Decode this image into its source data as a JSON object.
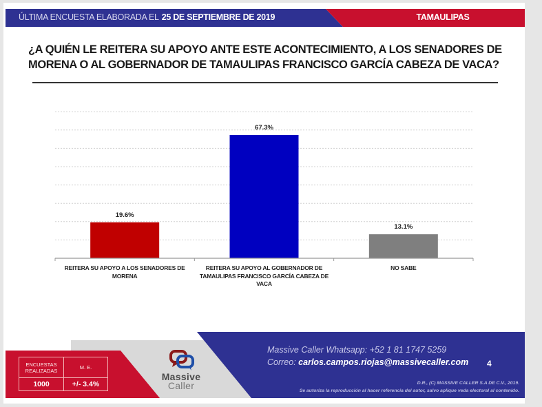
{
  "header": {
    "survey_label": "ÚLTIMA ENCUESTA ELABORADA EL",
    "survey_date": "25 DE SEPTIEMBRE DE 2019",
    "state": "TAMAULIPAS",
    "colors": {
      "blue": "#2e3192",
      "red": "#c8102e"
    }
  },
  "question": "¿A QUIÉN LE REITERA SU APOYO ANTE ESTE ACONTECIMIENTO, A LOS SENADORES DE MORENA O AL GOBERNADOR DE TAMAULIPAS FRANCISCO GARCÍA CABEZA DE VACA?",
  "chart_data": {
    "type": "bar",
    "title": "¿A QUIÉN LE REITERA SU APOYO ANTE ESTE ACONTECIMIENTO, A LOS SENADORES DE MORENA O AL GOBERNADOR DE TAMAULIPAS FRANCISCO GARCÍA CABEZA DE VACA?",
    "categories": [
      "REITERA SU APOYO A LOS SENADORES DE MORENA",
      "REITERA SU APOYO AL GOBERNADOR DE TAMAULIPAS FRANCISCO GARCÍA CABEZA DE VACA",
      "NO SABE"
    ],
    "values": [
      19.6,
      67.3,
      13.1
    ],
    "data_labels": [
      "19.6%",
      "67.3%",
      "13.1%"
    ],
    "colors": [
      "#c00000",
      "#0000c0",
      "#7f7f7f"
    ],
    "xlabel": "",
    "ylabel": "",
    "ylim": [
      0,
      80
    ],
    "grid": true,
    "grid_step": 10,
    "legend": "none"
  },
  "footer": {
    "table": {
      "col1_header": "ENCUESTAS REALIZADAS",
      "col2_header": "M. E.",
      "col1_value": "1000",
      "col2_value": "+/- 3.4%"
    },
    "logo": {
      "line1": "Massive",
      "line2": "Caller"
    },
    "whatsapp": "Massive Caller Whatsapp: +52 1 81 1747 5259",
    "email_label": "Correo:",
    "email": "carlos.campos.riojas@massivecaller.com",
    "page_number": "4",
    "copyright": "D.R., (C) MASSIVE CALLER S.A DE C.V., 2019.",
    "disclaimer": "Se autoriza la reproducción al hacer referencia del autor, salvo aplique veda electoral al contenido."
  }
}
